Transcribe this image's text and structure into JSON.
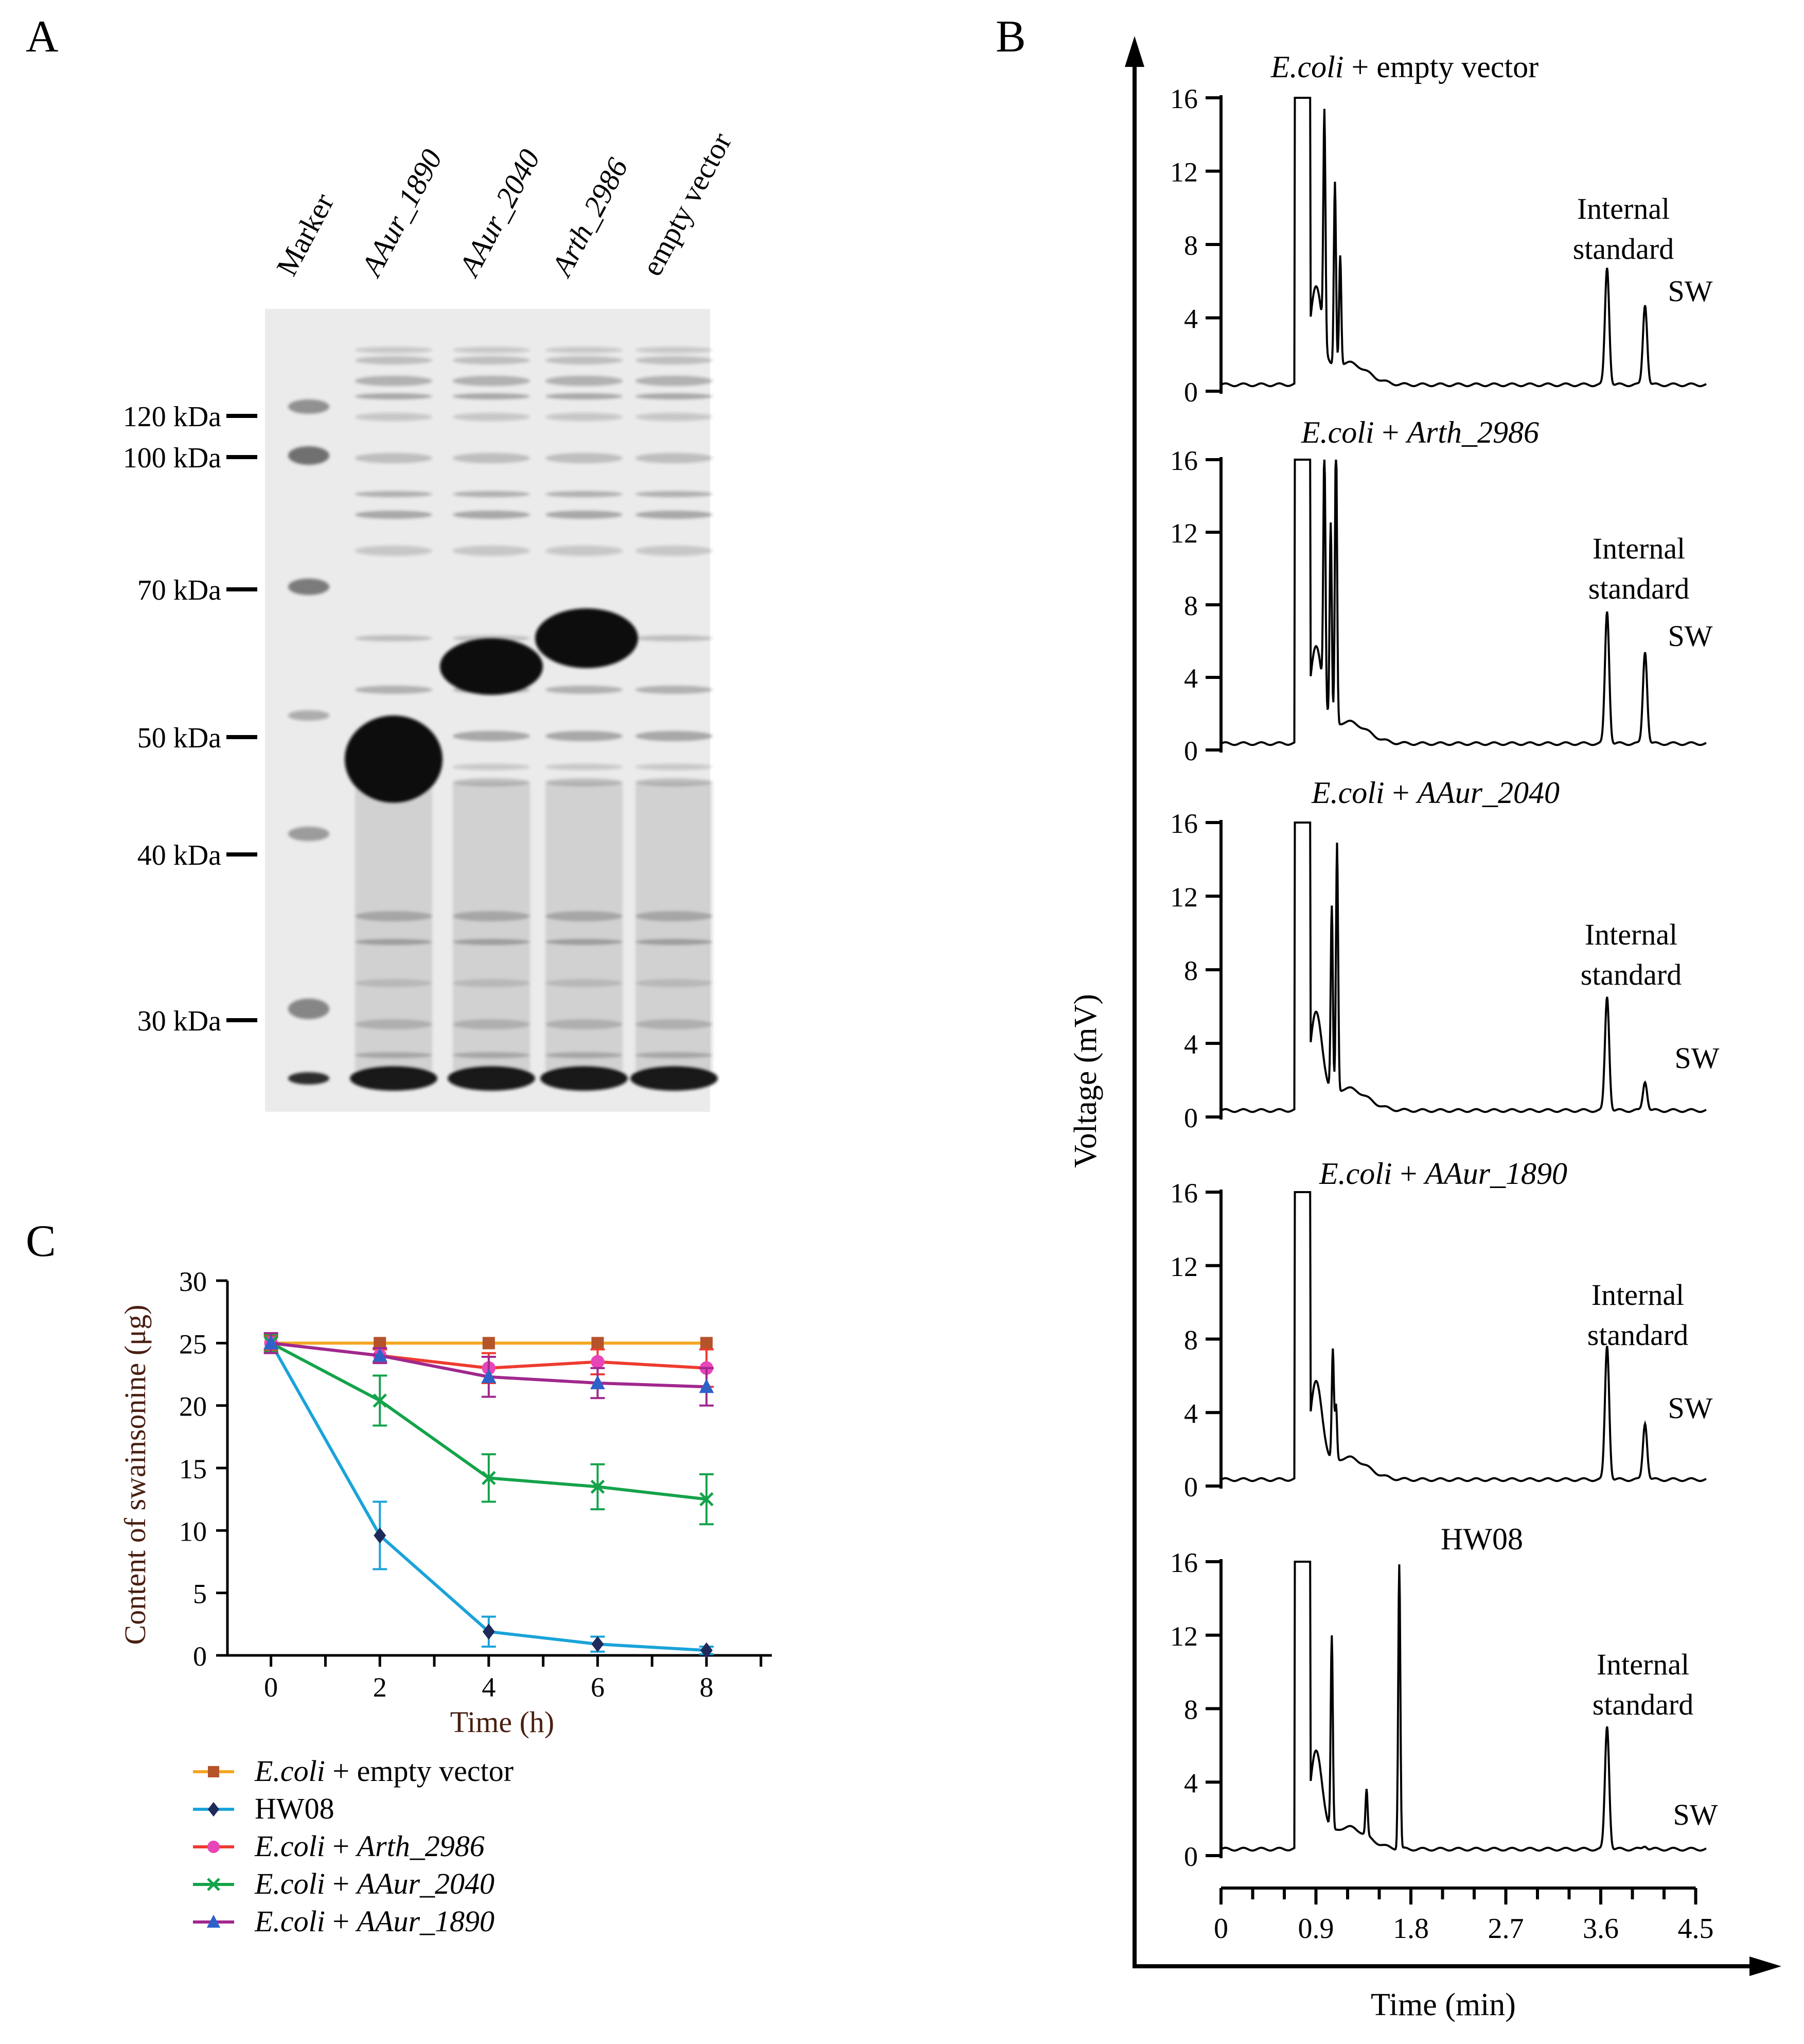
{
  "panels": {
    "a": "A",
    "b": "B",
    "c": "C"
  },
  "gel": {
    "lanes": [
      "Marker",
      "AAur_1890",
      "AAur_2040",
      "Arth_2986",
      "empty vector"
    ],
    "markers": [
      "120 kDa",
      "100 kDa",
      "70 kDa",
      "50 kDa",
      "40 kDa",
      "30 kDa"
    ]
  },
  "chromatograms": {
    "y_axis_label": "Voltage (mV)",
    "x_axis_label": "Time (min)",
    "y_ticks": [
      "0",
      "4",
      "8",
      "12",
      "16"
    ],
    "x_ticks": [
      "0",
      "0.9",
      "1.8",
      "2.7",
      "3.6",
      "4.5"
    ],
    "peak_labels": {
      "internal_1": "Internal",
      "internal_2": "standard",
      "sw": "SW"
    },
    "traces": [
      {
        "title_italic": "E.coli",
        "title_rest": " + empty vector",
        "title_rest_italic": false
      },
      {
        "title_italic": "E.coli",
        "title_rest": " + Arth_2986",
        "title_rest_italic": true
      },
      {
        "title_italic": "E.coli",
        "title_rest": " + AAur_2040",
        "title_rest_italic": true
      },
      {
        "title_italic": "E.coli",
        "title_rest": " + AAur_1890",
        "title_rest_italic": true
      },
      {
        "title_italic": "",
        "title_rest": "HW08",
        "title_rest_italic": false
      }
    ]
  },
  "chart_data": {
    "type": "line",
    "title": "",
    "xlabel": "Time (h)",
    "ylabel": "Content of swainsonine (μg)",
    "x": [
      0,
      2,
      4,
      6,
      8
    ],
    "xlim": [
      -0.8,
      9.2
    ],
    "ylim": [
      0,
      30
    ],
    "x_ticks": [
      "0",
      "2",
      "4",
      "6",
      "8"
    ],
    "y_ticks": [
      "0",
      "5",
      "10",
      "15",
      "20",
      "25",
      "30"
    ],
    "grid": false,
    "legend_position": "bottom",
    "series": [
      {
        "name_italic": "E.coli",
        "name_rest": " + empty vector",
        "rest_italic": false,
        "values": [
          25,
          25,
          25,
          25,
          25
        ],
        "errors": [
          0.5,
          0,
          0,
          0,
          0
        ],
        "color": "#f5a623",
        "marker_color": "#b5532a",
        "marker": "square"
      },
      {
        "name_italic": "",
        "name_rest": "HW08",
        "rest_italic": false,
        "values": [
          25,
          9.6,
          1.9,
          0.9,
          0.4
        ],
        "errors": [
          0.5,
          2.7,
          1.2,
          0.6,
          0.3
        ],
        "color": "#1aa3d9",
        "marker_color": "#1f2a5c",
        "marker": "diamond"
      },
      {
        "name_italic": "E.coli",
        "name_rest": " + Arth_2986",
        "rest_italic": true,
        "values": [
          25,
          24,
          23,
          23.5,
          23
        ],
        "errors": [
          0.6,
          0.5,
          1.2,
          1.0,
          1.5
        ],
        "color": "#ee3b2f",
        "marker_color": "#e845b8",
        "marker": "circle"
      },
      {
        "name_italic": "E.coli",
        "name_rest": " + AAur_2040",
        "rest_italic": true,
        "values": [
          25,
          20.4,
          14.2,
          13.5,
          12.5
        ],
        "errors": [
          0.7,
          2.0,
          1.9,
          1.8,
          2.0
        ],
        "color": "#14a34a",
        "marker_color": "#14a34a",
        "marker": "x"
      },
      {
        "name_italic": "E.coli",
        "name_rest": " + AAur_1890",
        "rest_italic": true,
        "values": [
          25,
          24,
          22.3,
          21.8,
          21.5
        ],
        "errors": [
          0.8,
          0.6,
          1.6,
          1.2,
          1.5
        ],
        "color": "#a0288e",
        "marker_color": "#2e62c9",
        "marker": "triangle"
      }
    ]
  }
}
